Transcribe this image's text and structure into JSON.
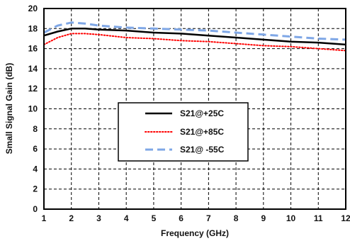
{
  "chart_data": {
    "type": "line",
    "title": "",
    "xlabel": "Frequency (GHz)",
    "ylabel": "Small Signal Gain (dB)",
    "xlim": [
      1,
      12
    ],
    "ylim": [
      0,
      20
    ],
    "xticks": [
      "1",
      "2",
      "3",
      "4",
      "5",
      "6",
      "7",
      "8",
      "9",
      "10",
      "11",
      "12"
    ],
    "yticks": [
      "0",
      "2",
      "4",
      "6",
      "8",
      "10",
      "12",
      "14",
      "16",
      "18",
      "20"
    ],
    "grid": true,
    "legend_position": "center",
    "series": [
      {
        "name": "S21@+25C",
        "color": "#000000",
        "style": "solid",
        "x": [
          1,
          1.5,
          2,
          2.5,
          3,
          4,
          5,
          6,
          7,
          8,
          9,
          10,
          11,
          12
        ],
        "y": [
          17.3,
          17.7,
          18.0,
          18.0,
          17.9,
          17.8,
          17.6,
          17.5,
          17.3,
          17.1,
          16.9,
          16.7,
          16.6,
          16.4
        ]
      },
      {
        "name": "S21@+85C",
        "color": "#ff0000",
        "style": "dotted",
        "x": [
          1,
          1.5,
          2,
          2.5,
          3,
          4,
          5,
          6,
          7,
          8,
          9,
          10,
          11,
          12
        ],
        "y": [
          16.4,
          17.1,
          17.5,
          17.5,
          17.4,
          17.1,
          17.0,
          16.8,
          16.7,
          16.5,
          16.3,
          16.2,
          16.0,
          15.8
        ]
      },
      {
        "name": "S21@ -55C",
        "color": "#7fa7e6",
        "style": "dashed",
        "x": [
          1,
          1.5,
          2,
          2.5,
          3,
          4,
          5,
          6,
          7,
          8,
          9,
          10,
          11,
          12
        ],
        "y": [
          17.6,
          18.3,
          18.6,
          18.5,
          18.3,
          18.1,
          18.0,
          17.9,
          17.8,
          17.6,
          17.4,
          17.2,
          17.0,
          16.9
        ]
      }
    ]
  }
}
